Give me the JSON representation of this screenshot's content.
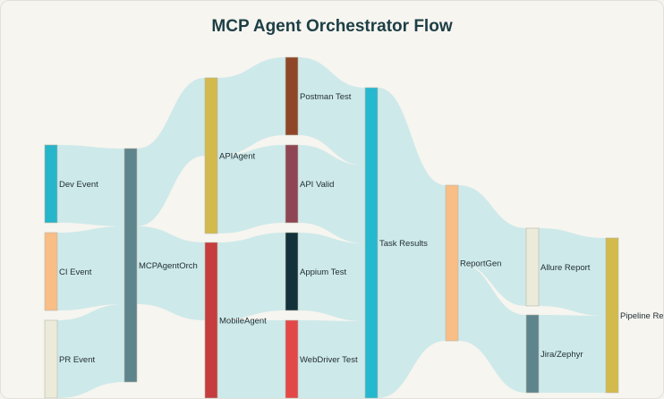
{
  "title": "MCP Agent Orchestrator Flow",
  "diagram": {
    "type": "sankey",
    "nodes": [
      {
        "id": "dev",
        "label": "Dev Event",
        "color": "#26b5c9"
      },
      {
        "id": "ci",
        "label": "CI Event",
        "color": "#f9bd86"
      },
      {
        "id": "pr",
        "label": "PR Event",
        "color": "#ecebd9"
      },
      {
        "id": "mcp",
        "label": "MCPAgentOrch",
        "color": "#5e848c"
      },
      {
        "id": "api",
        "label": "APIAgent",
        "color": "#d3ba4c"
      },
      {
        "id": "mobile",
        "label": "MobileAgent",
        "color": "#c53d3d"
      },
      {
        "id": "postman",
        "label": "Postman Test",
        "color": "#8f4628"
      },
      {
        "id": "apival",
        "label": "API Valid",
        "color": "#8e4554"
      },
      {
        "id": "appium",
        "label": "Appium Test",
        "color": "#13313a"
      },
      {
        "id": "wd",
        "label": "WebDriver Test",
        "color": "#e34848"
      },
      {
        "id": "task",
        "label": "Task Results",
        "color": "#25b8cf"
      },
      {
        "id": "report",
        "label": "ReportGen",
        "color": "#f9bd86"
      },
      {
        "id": "allure",
        "label": "Allure Report",
        "color": "#ecebd9"
      },
      {
        "id": "jira",
        "label": "Jira/Zephyr",
        "color": "#5e848c"
      },
      {
        "id": "pipe",
        "label": "Pipeline Result",
        "color": "#d3ba4c"
      }
    ],
    "links": [
      {
        "source": "dev",
        "target": "mcp",
        "value": 1
      },
      {
        "source": "ci",
        "target": "mcp",
        "value": 1
      },
      {
        "source": "pr",
        "target": "mcp",
        "value": 1
      },
      {
        "source": "mcp",
        "target": "api",
        "value": 2
      },
      {
        "source": "mcp",
        "target": "mobile",
        "value": 2
      },
      {
        "source": "api",
        "target": "postman",
        "value": 1
      },
      {
        "source": "api",
        "target": "apival",
        "value": 1
      },
      {
        "source": "mobile",
        "target": "appium",
        "value": 1
      },
      {
        "source": "mobile",
        "target": "wd",
        "value": 1
      },
      {
        "source": "postman",
        "target": "task",
        "value": 1
      },
      {
        "source": "apival",
        "target": "task",
        "value": 1
      },
      {
        "source": "appium",
        "target": "task",
        "value": 1
      },
      {
        "source": "wd",
        "target": "task",
        "value": 1
      },
      {
        "source": "task",
        "target": "report",
        "value": 2
      },
      {
        "source": "report",
        "target": "allure",
        "value": 1
      },
      {
        "source": "report",
        "target": "jira",
        "value": 1
      },
      {
        "source": "allure",
        "target": "pipe",
        "value": 1
      },
      {
        "source": "jira",
        "target": "pipe",
        "value": 1
      }
    ],
    "link_color": "#c7e6e8"
  }
}
